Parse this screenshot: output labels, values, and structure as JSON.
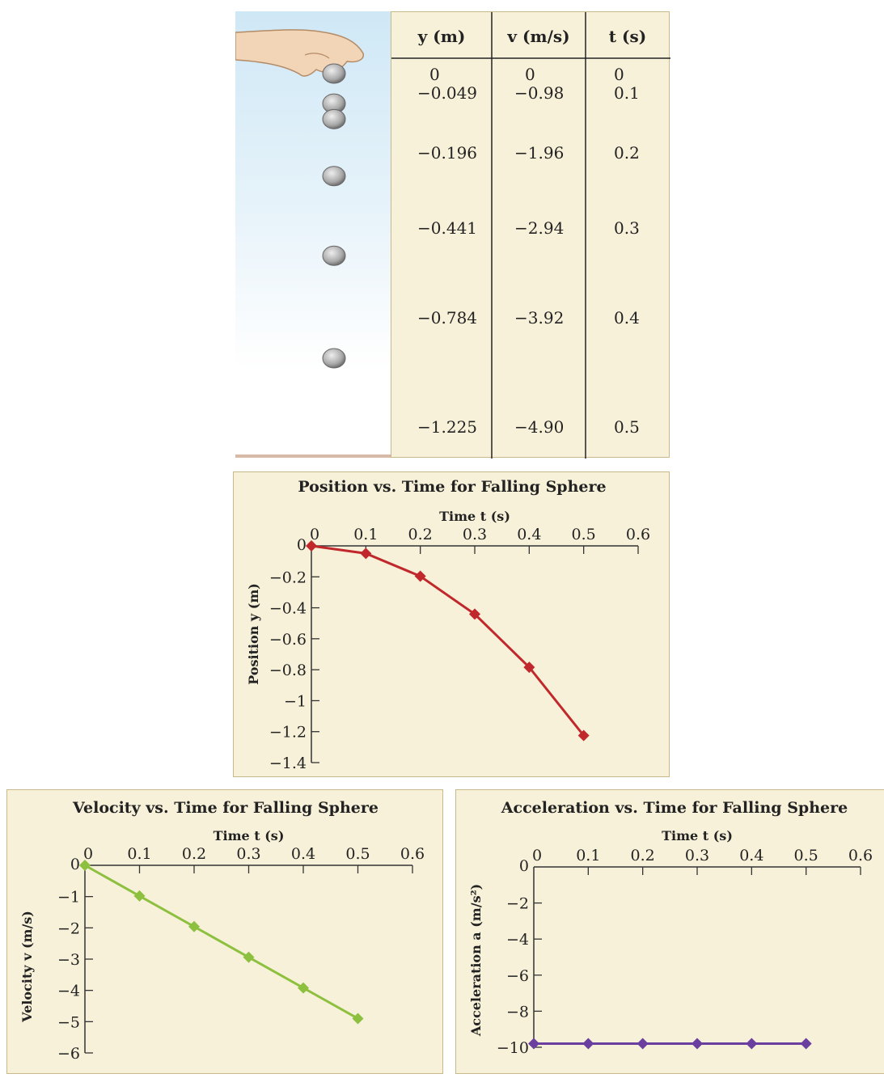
{
  "table": {
    "headers": [
      "y (m)",
      "v (m/s)",
      "t (s)"
    ],
    "rows": [
      {
        "y": "0",
        "v": "0",
        "t": "0"
      },
      {
        "y": "−0.049",
        "v": "−0.98",
        "t": "0.1"
      },
      {
        "y": "−0.196",
        "v": "−1.96",
        "t": "0.2"
      },
      {
        "y": "−0.441",
        "v": "−2.94",
        "t": "0.3"
      },
      {
        "y": "−0.784",
        "v": "−3.92",
        "t": "0.4"
      },
      {
        "y": "−1.225",
        "v": "−4.90",
        "t": "0.5"
      }
    ]
  },
  "chart_data": [
    {
      "type": "line",
      "title": "Position vs. Time for Falling Sphere",
      "xlabel": "Time t (s)",
      "ylabel": "Position y (m)",
      "x": [
        0,
        0.1,
        0.2,
        0.3,
        0.4,
        0.5
      ],
      "y": [
        0,
        -0.049,
        -0.196,
        -0.441,
        -0.784,
        -1.225
      ],
      "xlim": [
        0,
        0.6
      ],
      "ylim": [
        -1.4,
        0
      ],
      "xticks": [
        "0",
        "0.1",
        "0.2",
        "0.3",
        "0.4",
        "0.5",
        "0.6"
      ],
      "yticks": [
        "0",
        "−0.2",
        "−0.4",
        "−0.6",
        "−0.8",
        "−1",
        "−1.2",
        "−1.4"
      ],
      "color": "#c0282c"
    },
    {
      "type": "line",
      "title": "Velocity vs. Time for Falling Sphere",
      "xlabel": "Time t (s)",
      "ylabel": "Velocity v (m/s)",
      "x": [
        0,
        0.1,
        0.2,
        0.3,
        0.4,
        0.5
      ],
      "y": [
        0,
        -0.98,
        -1.96,
        -2.94,
        -3.92,
        -4.9
      ],
      "xlim": [
        0,
        0.6
      ],
      "ylim": [
        -6,
        0
      ],
      "xticks": [
        "0",
        "0.1",
        "0.2",
        "0.3",
        "0.4",
        "0.5",
        "0.6"
      ],
      "yticks": [
        "0",
        "−1",
        "−2",
        "−3",
        "−4",
        "−5",
        "−6"
      ],
      "color": "#8dc03f"
    },
    {
      "type": "line",
      "title": "Acceleration vs. Time for Falling Sphere",
      "xlabel": "Time t (s)",
      "ylabel": "Acceleration a (m/s²)",
      "x": [
        0,
        0.1,
        0.2,
        0.3,
        0.4,
        0.5
      ],
      "y": [
        -9.8,
        -9.8,
        -9.8,
        -9.8,
        -9.8,
        -9.8
      ],
      "xlim": [
        0,
        0.6
      ],
      "ylim": [
        -10,
        0
      ],
      "xticks": [
        "0",
        "0.1",
        "0.2",
        "0.3",
        "0.4",
        "0.5",
        "0.6"
      ],
      "yticks": [
        "0",
        "−2",
        "−4",
        "−6",
        "−8",
        "−10"
      ],
      "color": "#6a3fa0"
    }
  ]
}
